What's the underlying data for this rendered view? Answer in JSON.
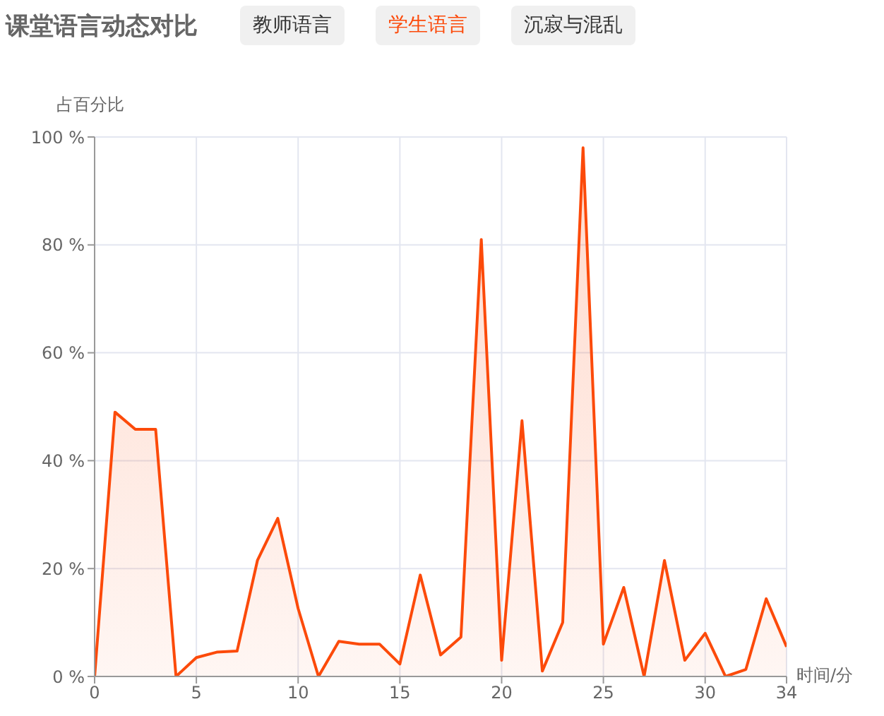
{
  "chart_data": {
    "type": "area",
    "title": "课堂语言动态对比",
    "annotations": [
      "教师语言",
      "沉寂与混乱"
    ],
    "xlabel": "时间/分",
    "ylabel": "占百分比",
    "x": [
      0,
      1,
      2,
      3,
      4,
      5,
      6,
      7,
      8,
      9,
      10,
      11,
      12,
      13,
      14,
      15,
      16,
      17,
      18,
      19,
      20,
      21,
      22,
      23,
      24,
      25,
      26,
      27,
      28,
      29,
      30,
      31,
      32,
      33,
      34
    ],
    "series": [
      {
        "name": "学生语言",
        "color": "#fc4a0a",
        "values": [
          0,
          49,
          45.8,
          45.8,
          0,
          3.5,
          4.5,
          4.7,
          21.5,
          29.3,
          12.6,
          0,
          6.5,
          6,
          6,
          2.3,
          18.8,
          4,
          7.3,
          81,
          3,
          47.4,
          1,
          10,
          98,
          6,
          16.5,
          0,
          21.5,
          3,
          8,
          0,
          1.3,
          14.4,
          5.5
        ]
      }
    ],
    "xlim": [
      0,
      34
    ],
    "xticks": [
      0,
      5,
      10,
      15,
      20,
      25,
      30,
      34
    ],
    "ylim": [
      0,
      100
    ],
    "yticks": [
      {
        "value": 0,
        "label": "0 %"
      },
      {
        "value": 20,
        "label": "20 %"
      },
      {
        "value": 40,
        "label": "40 %"
      },
      {
        "value": 60,
        "label": "60 %"
      },
      {
        "value": 80,
        "label": "80 %"
      },
      {
        "value": 100,
        "label": "100 %"
      }
    ],
    "grid": true,
    "legend": "top",
    "marker": "none",
    "line_style": "solid"
  }
}
